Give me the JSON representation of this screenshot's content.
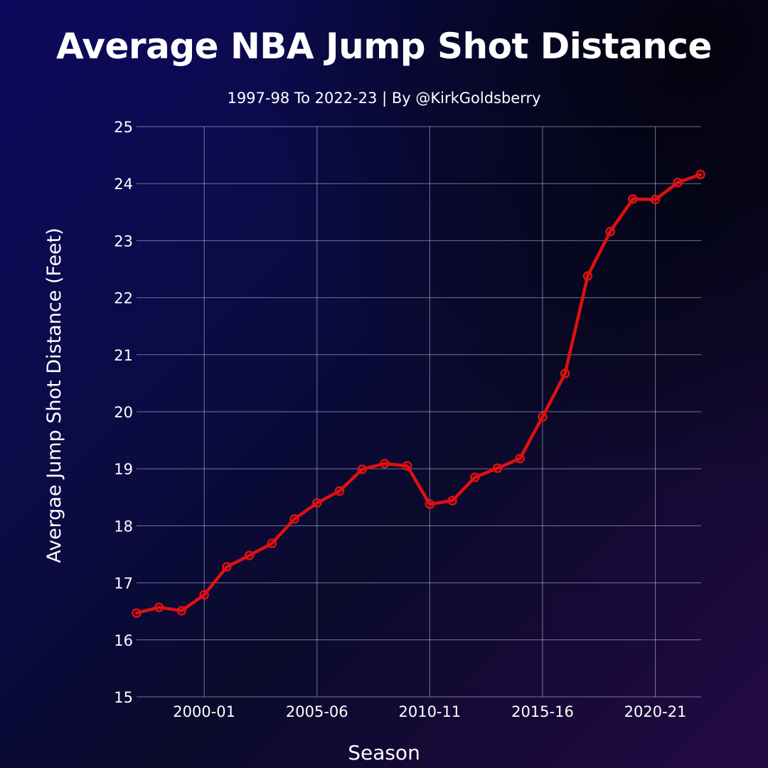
{
  "chart_data": {
    "type": "line",
    "title": "Average NBA Jump Shot Distance",
    "subtitle": "1997-98 To 2022-23 | By @KirkGoldsberry",
    "xlabel": "Season",
    "ylabel": "Avergae Jump Shot Distance (Feet)",
    "ylim": [
      15,
      25
    ],
    "yticks": [
      "15",
      "16",
      "17",
      "18",
      "19",
      "20",
      "21",
      "22",
      "23",
      "24",
      "25"
    ],
    "xticks": [
      "2000-01",
      "2005-06",
      "2010-11",
      "2015-16",
      "2020-21"
    ],
    "grid": true,
    "line_color": "#e01010",
    "series": [
      {
        "x": [
          "1997-98",
          "1998-99",
          "1999-00",
          "2000-01",
          "2001-02",
          "2002-03",
          "2003-04",
          "2004-05",
          "2005-06",
          "2006-07",
          "2007-08",
          "2008-09",
          "2009-10",
          "2010-11",
          "2011-12",
          "2012-13",
          "2013-14",
          "2014-15",
          "2015-16",
          "2016-17",
          "2017-18",
          "2018-19",
          "2019-20",
          "2020-21",
          "2021-22",
          "2022-23"
        ],
        "values": [
          16.47,
          16.57,
          16.51,
          16.79,
          17.28,
          17.48,
          17.69,
          18.12,
          18.4,
          18.61,
          18.99,
          19.09,
          19.05,
          18.38,
          18.44,
          18.85,
          19.01,
          19.18,
          19.91,
          20.67,
          22.38,
          23.16,
          23.73,
          23.72,
          24.02,
          24.16
        ]
      }
    ]
  }
}
